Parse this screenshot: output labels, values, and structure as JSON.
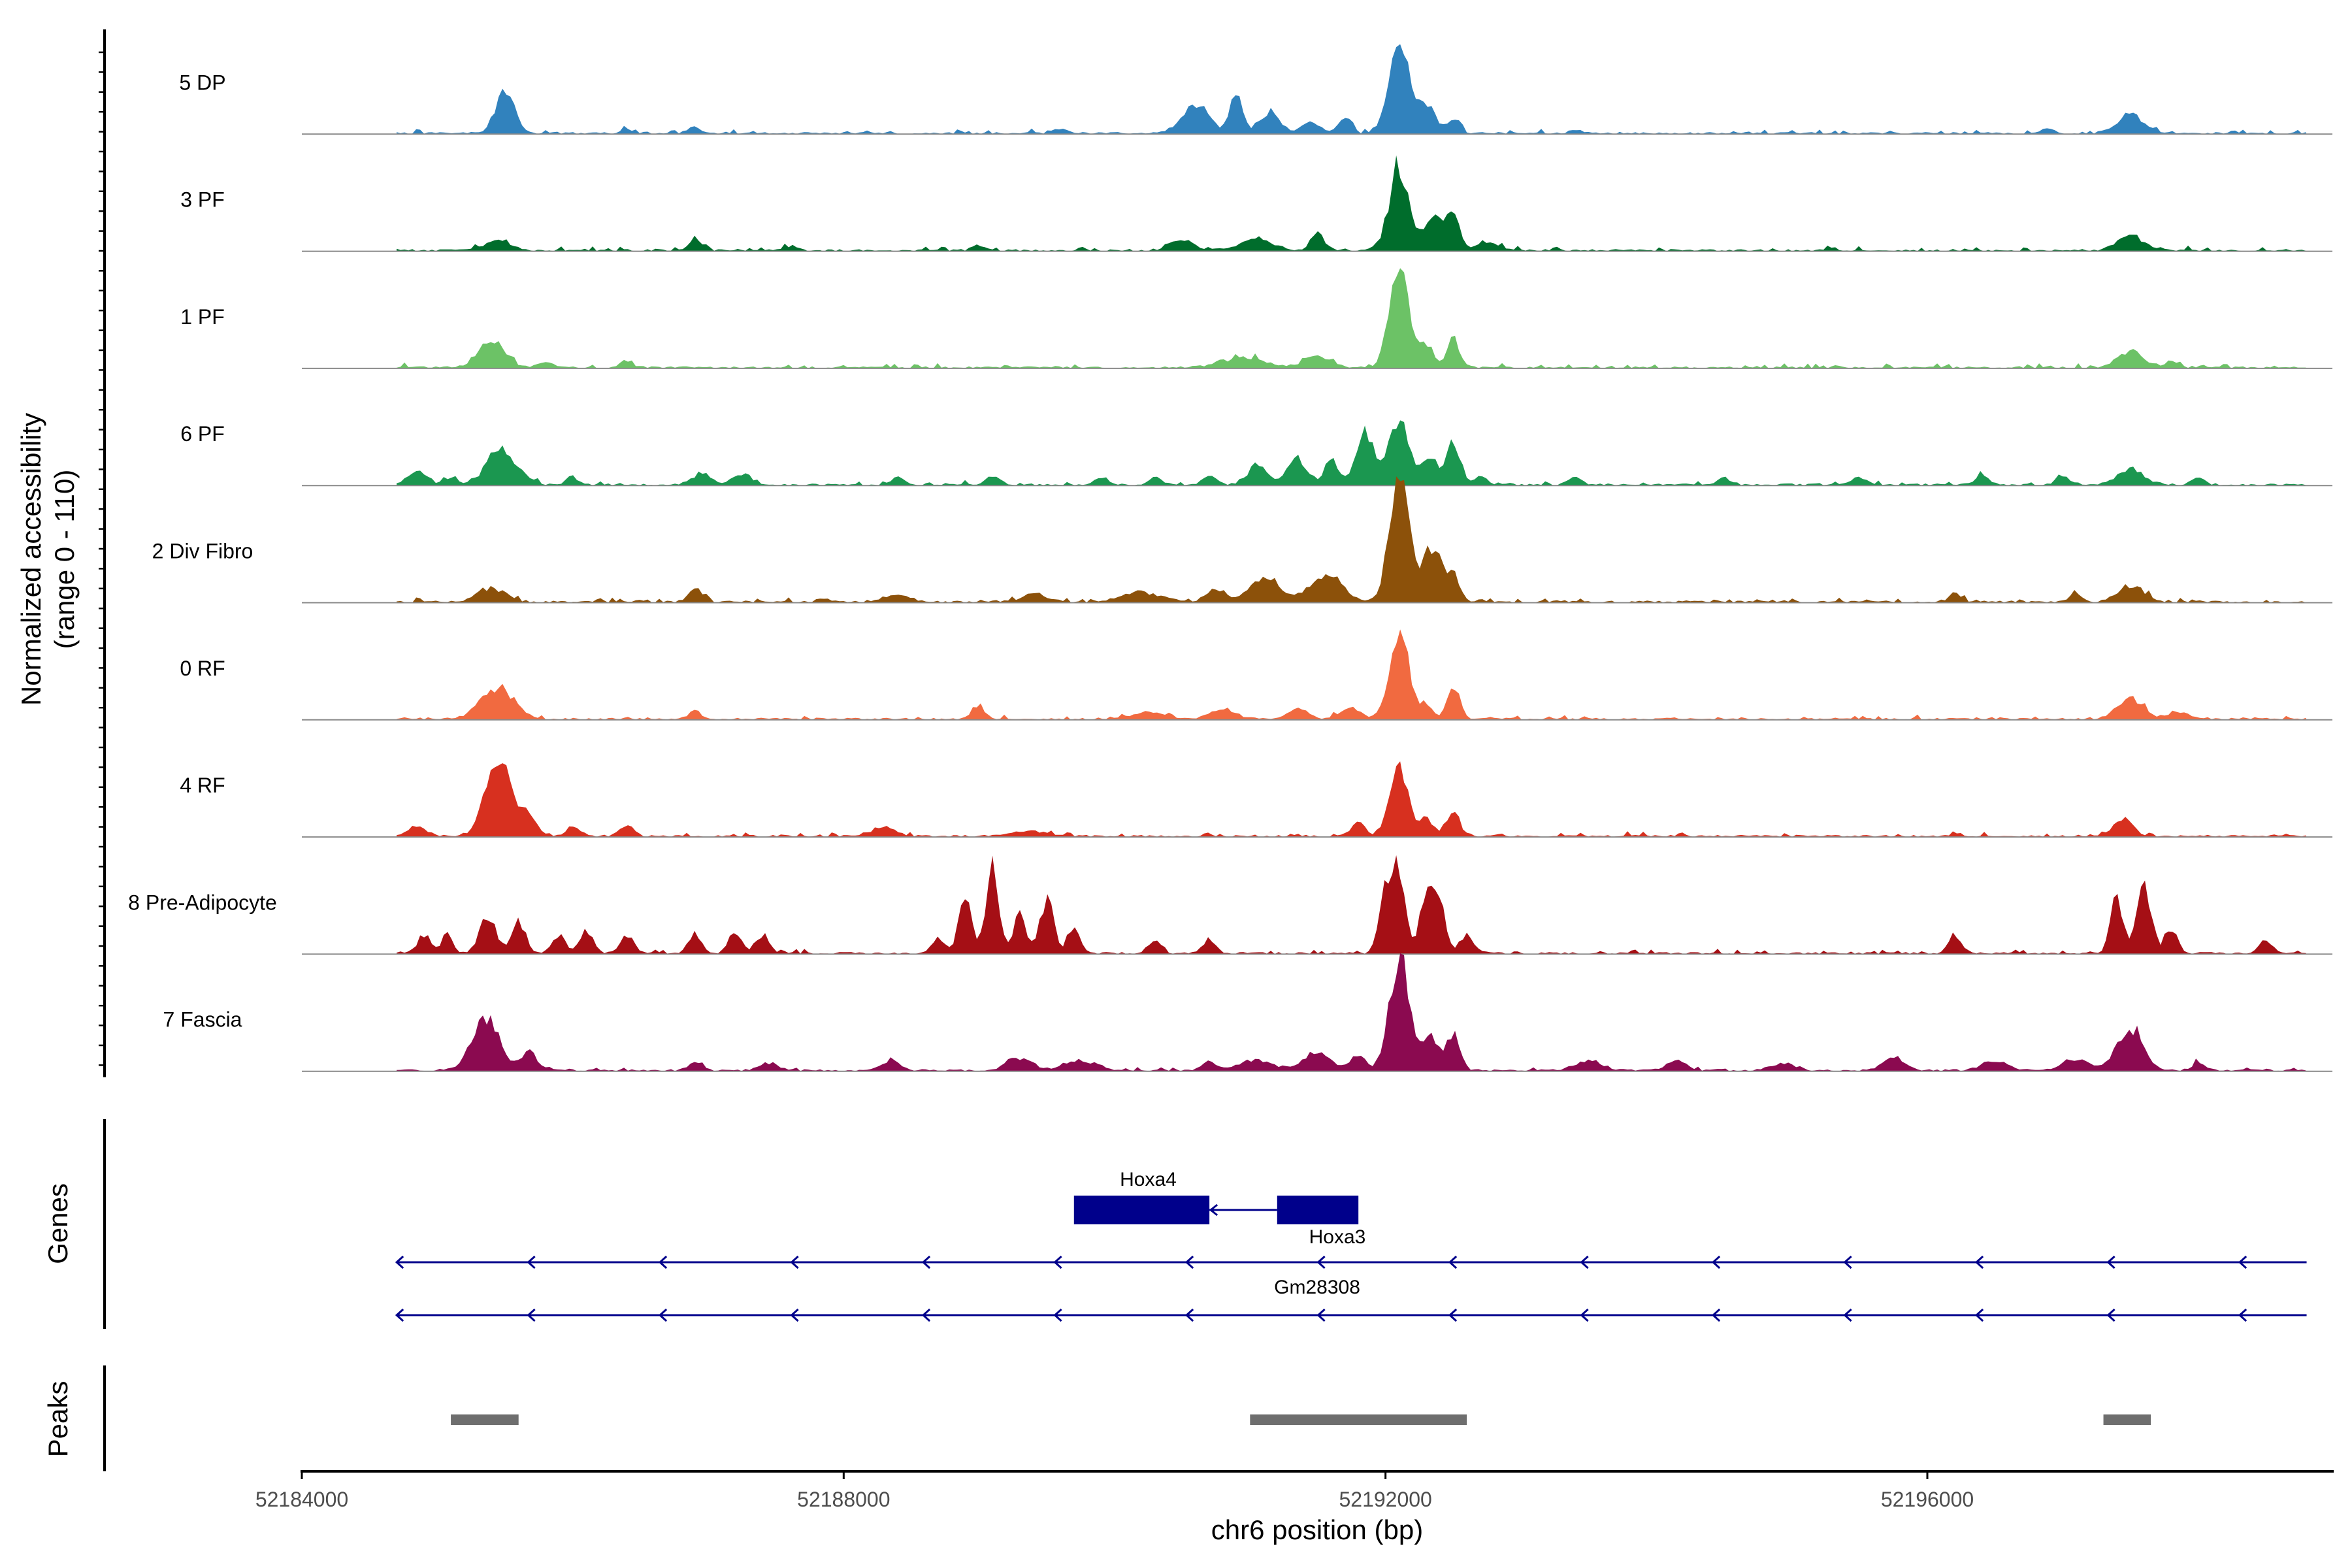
{
  "chart_data": {
    "type": "area",
    "title": "",
    "ylabel": "Normalized accessibility",
    "ylabel_range": "(range 0 - 110)",
    "xlabel": "chr6 position (bp)",
    "xlim": [
      52184000,
      52199000
    ],
    "ylim": [
      0,
      110
    ],
    "x_ticks": [
      52184000,
      52188000,
      52192000,
      52196000
    ],
    "x_tick_labels": [
      "52184000",
      "52188000",
      "52192000",
      "52196000"
    ],
    "region": [
      52184700,
      52198800
    ],
    "tracks": [
      {
        "name": "5 DP",
        "color": "#3182bd",
        "peaks": [
          [
            52185350,
            52185650,
            45
          ],
          [
            52186300,
            52186500,
            5
          ],
          [
            52186800,
            52187000,
            6
          ],
          [
            52189500,
            52189700,
            5
          ],
          [
            52190400,
            52190800,
            30
          ],
          [
            52190800,
            52191000,
            40
          ],
          [
            52191000,
            52191300,
            22
          ],
          [
            52191300,
            52191600,
            12
          ],
          [
            52191600,
            52191800,
            15
          ],
          [
            52191950,
            52192250,
            100
          ],
          [
            52192150,
            52192450,
            30
          ],
          [
            52192400,
            52192600,
            15
          ],
          [
            52196800,
            52197000,
            5
          ],
          [
            52197300,
            52197700,
            20
          ]
        ]
      },
      {
        "name": "3 PF",
        "color": "#006d2c",
        "peaks": [
          [
            52185250,
            52185650,
            10
          ],
          [
            52186800,
            52187000,
            12
          ],
          [
            52187500,
            52187700,
            5
          ],
          [
            52188900,
            52189100,
            6
          ],
          [
            52190300,
            52190700,
            10
          ],
          [
            52190800,
            52191300,
            12
          ],
          [
            52191400,
            52191600,
            18
          ],
          [
            52191950,
            52192250,
            92
          ],
          [
            52192200,
            52192500,
            35
          ],
          [
            52192400,
            52192600,
            38
          ],
          [
            52192600,
            52192900,
            10
          ],
          [
            52197300,
            52197700,
            16
          ]
        ]
      },
      {
        "name": "1 PF",
        "color": "#6cc266",
        "peaks": [
          [
            52185200,
            52185600,
            30
          ],
          [
            52185700,
            52185900,
            6
          ],
          [
            52186300,
            52186500,
            6
          ],
          [
            52190600,
            52191300,
            10
          ],
          [
            52191300,
            52191700,
            12
          ],
          [
            52191950,
            52192250,
            100
          ],
          [
            52192200,
            52192400,
            25
          ],
          [
            52192400,
            52192600,
            30
          ],
          [
            52197300,
            52197700,
            18
          ],
          [
            52197700,
            52197900,
            6
          ]
        ]
      },
      {
        "name": "6 PF",
        "color": "#1b9750",
        "peaks": [
          [
            52184700,
            52185000,
            15
          ],
          [
            52185000,
            52185200,
            8
          ],
          [
            52185250,
            52185700,
            38
          ],
          [
            52185900,
            52186100,
            8
          ],
          [
            52186800,
            52187100,
            12
          ],
          [
            52187100,
            52187400,
            12
          ],
          [
            52188300,
            52188500,
            8
          ],
          [
            52189000,
            52189200,
            10
          ],
          [
            52189800,
            52190000,
            8
          ],
          [
            52190200,
            52190400,
            8
          ],
          [
            52190600,
            52190800,
            10
          ],
          [
            52190900,
            52191200,
            20
          ],
          [
            52191200,
            52191500,
            28
          ],
          [
            52191500,
            52191700,
            28
          ],
          [
            52191700,
            52192000,
            55
          ],
          [
            52191950,
            52192250,
            70
          ],
          [
            52192200,
            52192450,
            30
          ],
          [
            52192400,
            52192600,
            50
          ],
          [
            52192600,
            52192800,
            10
          ],
          [
            52193300,
            52193500,
            8
          ],
          [
            52194400,
            52194600,
            8
          ],
          [
            52195400,
            52195600,
            8
          ],
          [
            52196300,
            52196500,
            10
          ],
          [
            52196900,
            52197100,
            10
          ],
          [
            52197300,
            52197700,
            18
          ],
          [
            52197900,
            52198100,
            8
          ]
        ]
      },
      {
        "name": "2 Div Fibro",
        "color": "#8c510a",
        "peaks": [
          [
            52185200,
            52185600,
            15
          ],
          [
            52186800,
            52187000,
            15
          ],
          [
            52188200,
            52188600,
            8
          ],
          [
            52189200,
            52189600,
            8
          ],
          [
            52189900,
            52190500,
            10
          ],
          [
            52190600,
            52190900,
            12
          ],
          [
            52190900,
            52191300,
            28
          ],
          [
            52191300,
            52191800,
            30
          ],
          [
            52191950,
            52192250,
            135
          ],
          [
            52192200,
            52192500,
            60
          ],
          [
            52192400,
            52192600,
            25
          ],
          [
            52196100,
            52196300,
            8
          ],
          [
            52197000,
            52197200,
            8
          ],
          [
            52197300,
            52197700,
            18
          ]
        ]
      },
      {
        "name": "0 RF",
        "color": "#f16a40",
        "peaks": [
          [
            52185200,
            52185700,
            35
          ],
          [
            52186800,
            52187000,
            8
          ],
          [
            52188900,
            52189100,
            12
          ],
          [
            52190000,
            52190500,
            8
          ],
          [
            52190600,
            52191000,
            10
          ],
          [
            52191200,
            52191500,
            10
          ],
          [
            52191600,
            52191900,
            12
          ],
          [
            52191950,
            52192250,
            90
          ],
          [
            52192200,
            52192400,
            15
          ],
          [
            52192400,
            52192600,
            35
          ],
          [
            52197300,
            52197700,
            22
          ],
          [
            52197700,
            52198000,
            8
          ]
        ]
      },
      {
        "name": "4 RF",
        "color": "#d7301f",
        "peaks": [
          [
            52184700,
            52185000,
            10
          ],
          [
            52185250,
            52185650,
            85
          ],
          [
            52185550,
            52185800,
            20
          ],
          [
            52185900,
            52186100,
            10
          ],
          [
            52186300,
            52186500,
            12
          ],
          [
            52188100,
            52188500,
            8
          ],
          [
            52189100,
            52189600,
            6
          ],
          [
            52191700,
            52191900,
            15
          ],
          [
            52191950,
            52192250,
            70
          ],
          [
            52192200,
            52192400,
            18
          ],
          [
            52192400,
            52192600,
            25
          ],
          [
            52197300,
            52197600,
            18
          ]
        ]
      },
      {
        "name": "8 Pre-Adipocyte",
        "color": "#a50f15",
        "peaks": [
          [
            52184800,
            52185000,
            20
          ],
          [
            52185000,
            52185150,
            25
          ],
          [
            52185250,
            52185500,
            40
          ],
          [
            52185500,
            52185700,
            35
          ],
          [
            52185800,
            52186000,
            20
          ],
          [
            52186000,
            52186200,
            25
          ],
          [
            52186300,
            52186500,
            20
          ],
          [
            52186800,
            52187000,
            20
          ],
          [
            52187100,
            52187300,
            25
          ],
          [
            52187300,
            52187500,
            20
          ],
          [
            52188600,
            52188800,
            15
          ],
          [
            52188800,
            52189000,
            60
          ],
          [
            52189000,
            52189200,
            90
          ],
          [
            52189200,
            52189400,
            40
          ],
          [
            52189400,
            52189600,
            60
          ],
          [
            52189600,
            52189800,
            25
          ],
          [
            52190200,
            52190400,
            15
          ],
          [
            52190600,
            52190800,
            15
          ],
          [
            52191900,
            52192100,
            70
          ],
          [
            52192000,
            52192200,
            85
          ],
          [
            52192200,
            52192400,
            60
          ],
          [
            52192300,
            52192500,
            50
          ],
          [
            52192500,
            52192700,
            20
          ],
          [
            52196100,
            52196300,
            20
          ],
          [
            52197300,
            52197500,
            60
          ],
          [
            52197500,
            52197700,
            80
          ],
          [
            52197700,
            52197900,
            25
          ],
          [
            52198400,
            52198600,
            15
          ]
        ]
      },
      {
        "name": "7 Fascia",
        "color": "#8b0a50",
        "peaks": [
          [
            52185150,
            52185550,
            58
          ],
          [
            52185550,
            52185800,
            20
          ],
          [
            52186800,
            52187000,
            8
          ],
          [
            52187300,
            52187600,
            8
          ],
          [
            52188200,
            52188500,
            10
          ],
          [
            52189100,
            52189500,
            12
          ],
          [
            52189500,
            52190000,
            10
          ],
          [
            52190600,
            52190800,
            10
          ],
          [
            52190800,
            52191300,
            12
          ],
          [
            52191300,
            52191700,
            20
          ],
          [
            52191700,
            52191900,
            18
          ],
          [
            52191950,
            52192250,
            120
          ],
          [
            52192200,
            52192450,
            40
          ],
          [
            52192400,
            52192600,
            40
          ],
          [
            52193300,
            52193700,
            10
          ],
          [
            52194000,
            52194300,
            10
          ],
          [
            52194800,
            52195100,
            8
          ],
          [
            52195600,
            52195900,
            15
          ],
          [
            52196300,
            52196700,
            10
          ],
          [
            52196900,
            52197300,
            12
          ],
          [
            52197300,
            52197700,
            45
          ],
          [
            52197900,
            52198100,
            8
          ]
        ]
      }
    ],
    "genes_track": {
      "label": "Genes",
      "color": "#00008b",
      "genes": [
        {
          "name": "Hoxa4",
          "strand": "-",
          "start": 52189700,
          "end": 52190700,
          "exons": [
            [
              52189700,
              52190700
            ]
          ]
        },
        {
          "name": "Hoxa3",
          "strand": "-",
          "start": 52190700,
          "end": 52191800,
          "exons": [
            [
              52191200,
              52191800
            ]
          ]
        },
        {
          "name": "Gm28308",
          "strand": "-",
          "start": 52184700,
          "end": 52198800,
          "exons": []
        },
        {
          "name": "",
          "strand": "-",
          "start": 52184700,
          "end": 52198800,
          "exons": []
        }
      ]
    },
    "peaks_track": {
      "label": "Peaks",
      "color": "#6e6e6e",
      "regions": [
        [
          52185100,
          52185600
        ],
        [
          52191000,
          52192600
        ],
        [
          52197300,
          52197650
        ]
      ]
    }
  }
}
